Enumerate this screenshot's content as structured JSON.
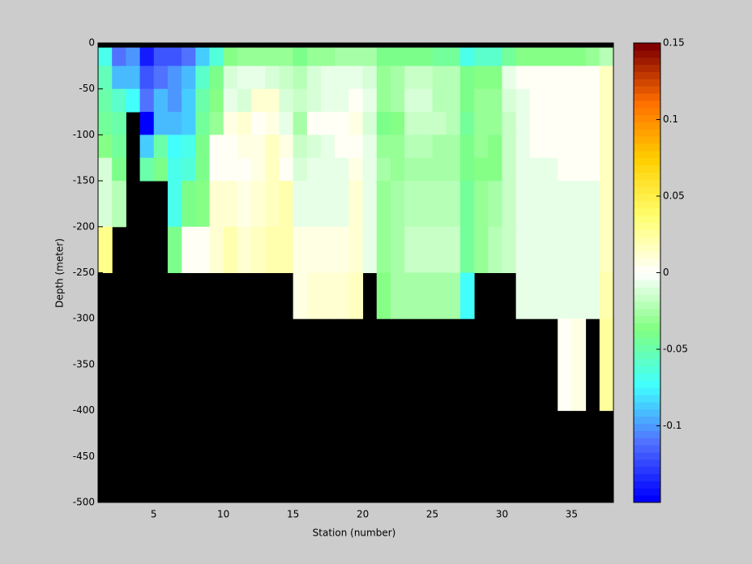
{
  "chart_data": {
    "type": "heatmap",
    "xlabel": "Station (number)",
    "ylabel": "Depth (meter)",
    "x": [
      1,
      2,
      3,
      4,
      5,
      6,
      7,
      8,
      9,
      10,
      11,
      12,
      13,
      14,
      15,
      16,
      17,
      18,
      19,
      20,
      21,
      22,
      23,
      24,
      25,
      26,
      27,
      28,
      29,
      30,
      31,
      32,
      33,
      34,
      35,
      36,
      37,
      38
    ],
    "y": [
      0,
      -5,
      -25,
      -50,
      -75,
      -100,
      -125,
      -150,
      -200,
      -250,
      -300,
      -400,
      -500
    ],
    "xlim": [
      1,
      38
    ],
    "xticks": [
      5,
      10,
      15,
      20,
      25,
      30,
      35
    ],
    "ylim": [
      -500,
      0
    ],
    "yticks": [
      0,
      -50,
      -100,
      -150,
      -200,
      -250,
      -300,
      -350,
      -400,
      -450,
      -500
    ],
    "clim": [
      -0.15,
      0.15
    ],
    "cticks": [
      0.15,
      0.1,
      0.05,
      0,
      -0.05,
      -0.1
    ],
    "colormap": [
      "#0000ff",
      "#5070ff",
      "#40ffff",
      "#80ff80",
      "#ffffff",
      "#ffff70",
      "#ffd000",
      "#ff7000",
      "#800000"
    ],
    "nan_color": "#000000",
    "values": [
      [
        null,
        -0.07,
        -0.055,
        -0.05,
        -0.045,
        -0.035,
        -0.01,
        -0.01,
        0.03,
        null,
        null,
        null
      ],
      [
        null,
        -0.11,
        -0.09,
        -0.06,
        -0.05,
        -0.045,
        -0.04,
        -0.02,
        null,
        null,
        null,
        null
      ],
      [
        null,
        -0.1,
        -0.09,
        -0.075,
        null,
        null,
        null,
        null,
        null,
        null,
        null,
        null
      ],
      [
        null,
        -0.14,
        -0.12,
        -0.11,
        -0.15,
        -0.085,
        -0.05,
        null,
        null,
        null,
        null,
        null
      ],
      [
        null,
        -0.12,
        -0.11,
        -0.09,
        -0.09,
        -0.05,
        -0.04,
        null,
        null,
        null,
        null,
        null
      ],
      [
        null,
        -0.12,
        -0.1,
        -0.1,
        -0.09,
        -0.075,
        -0.07,
        -0.07,
        -0.04,
        null,
        null,
        null
      ],
      [
        null,
        -0.11,
        -0.09,
        -0.085,
        -0.085,
        -0.07,
        -0.065,
        -0.04,
        0,
        null,
        null,
        null
      ],
      [
        null,
        -0.085,
        -0.06,
        -0.05,
        -0.045,
        -0.04,
        -0.04,
        -0.035,
        0,
        null,
        null,
        null
      ],
      [
        null,
        -0.065,
        -0.04,
        -0.035,
        -0.03,
        0,
        0,
        0.01,
        0.01,
        null,
        null,
        null
      ],
      [
        null,
        -0.035,
        -0.01,
        -0.005,
        0.005,
        0,
        0,
        0.01,
        0.02,
        null,
        null,
        null
      ],
      [
        null,
        -0.03,
        -0.005,
        -0.01,
        0.01,
        0.005,
        0,
        0.005,
        0.01,
        null,
        null,
        null
      ],
      [
        null,
        -0.03,
        -0.005,
        0.01,
        0,
        0.005,
        0.005,
        0.01,
        0.015,
        null,
        null,
        null
      ],
      [
        null,
        -0.03,
        -0.01,
        0.01,
        0.005,
        0.015,
        0.015,
        0.015,
        0.02,
        null,
        null,
        null
      ],
      [
        null,
        -0.03,
        -0.015,
        -0.01,
        -0.005,
        0.005,
        0,
        0.02,
        0.02,
        null,
        null,
        null
      ],
      [
        null,
        -0.04,
        -0.02,
        -0.015,
        -0.025,
        -0.015,
        -0.01,
        -0.005,
        0.005,
        0.005,
        null,
        null
      ],
      [
        null,
        -0.03,
        -0.01,
        -0.01,
        0,
        -0.01,
        -0.005,
        -0.005,
        0.005,
        0.01,
        null,
        null
      ],
      [
        null,
        -0.03,
        -0.005,
        -0.005,
        0,
        -0.005,
        -0.005,
        -0.005,
        0.005,
        0.01,
        null,
        null
      ],
      [
        null,
        -0.025,
        -0.005,
        -0.005,
        0,
        0,
        -0.005,
        -0.005,
        0.005,
        0.01,
        null,
        null
      ],
      [
        null,
        -0.025,
        -0.005,
        0,
        0.005,
        0,
        0.005,
        0.01,
        0.01,
        0.015,
        null,
        null
      ],
      [
        null,
        -0.025,
        -0.01,
        -0.005,
        -0.01,
        -0.005,
        -0.005,
        -0.005,
        -0.005,
        null,
        null,
        null
      ],
      [
        null,
        -0.04,
        -0.03,
        -0.03,
        -0.04,
        -0.03,
        -0.025,
        -0.03,
        -0.03,
        -0.035,
        null,
        null
      ],
      [
        null,
        -0.04,
        -0.025,
        -0.025,
        -0.035,
        -0.03,
        -0.03,
        -0.025,
        -0.025,
        -0.025,
        null,
        null
      ],
      [
        null,
        -0.04,
        -0.015,
        -0.01,
        -0.015,
        -0.02,
        -0.025,
        -0.02,
        -0.015,
        -0.025,
        null,
        null
      ],
      [
        null,
        -0.04,
        -0.015,
        -0.01,
        -0.015,
        -0.02,
        -0.025,
        -0.02,
        -0.015,
        -0.025,
        null,
        null
      ],
      [
        null,
        -0.045,
        -0.02,
        -0.02,
        -0.015,
        -0.025,
        -0.025,
        -0.02,
        -0.015,
        -0.025,
        null,
        null
      ],
      [
        null,
        -0.045,
        -0.02,
        -0.02,
        -0.02,
        -0.025,
        -0.025,
        -0.02,
        -0.015,
        -0.025,
        null,
        null
      ],
      [
        null,
        -0.07,
        -0.04,
        -0.04,
        -0.045,
        -0.04,
        -0.04,
        -0.045,
        -0.045,
        -0.075,
        null,
        null
      ],
      [
        null,
        -0.06,
        -0.035,
        -0.03,
        -0.03,
        -0.03,
        -0.035,
        -0.03,
        -0.03,
        null,
        null,
        null
      ],
      [
        null,
        -0.06,
        -0.035,
        -0.03,
        -0.03,
        -0.035,
        -0.035,
        -0.025,
        -0.02,
        null,
        null,
        null
      ],
      [
        null,
        -0.045,
        -0.005,
        -0.01,
        -0.015,
        -0.015,
        -0.015,
        -0.015,
        -0.015,
        null,
        null,
        null
      ],
      [
        null,
        -0.035,
        0,
        -0.005,
        -0.005,
        -0.005,
        -0.005,
        -0.005,
        -0.005,
        -0.005,
        null,
        null
      ],
      [
        null,
        -0.035,
        0,
        0,
        0,
        0,
        -0.005,
        -0.005,
        -0.005,
        -0.005,
        null,
        null
      ],
      [
        null,
        -0.035,
        0,
        0,
        0,
        0,
        -0.005,
        -0.005,
        -0.005,
        -0.005,
        null,
        null
      ],
      [
        null,
        -0.035,
        0,
        0,
        0,
        0,
        0,
        -0.005,
        -0.005,
        -0.005,
        0,
        null
      ],
      [
        null,
        -0.035,
        0,
        0,
        0,
        0,
        0,
        -0.005,
        -0.005,
        -0.005,
        0.005,
        null
      ],
      [
        null,
        -0.03,
        0,
        0,
        0,
        0,
        0,
        -0.005,
        -0.005,
        -0.005,
        null,
        null
      ],
      [
        null,
        -0.02,
        0.015,
        0.015,
        0.015,
        0.015,
        0.015,
        0.015,
        0.015,
        0.02,
        0.025,
        null
      ]
    ]
  }
}
